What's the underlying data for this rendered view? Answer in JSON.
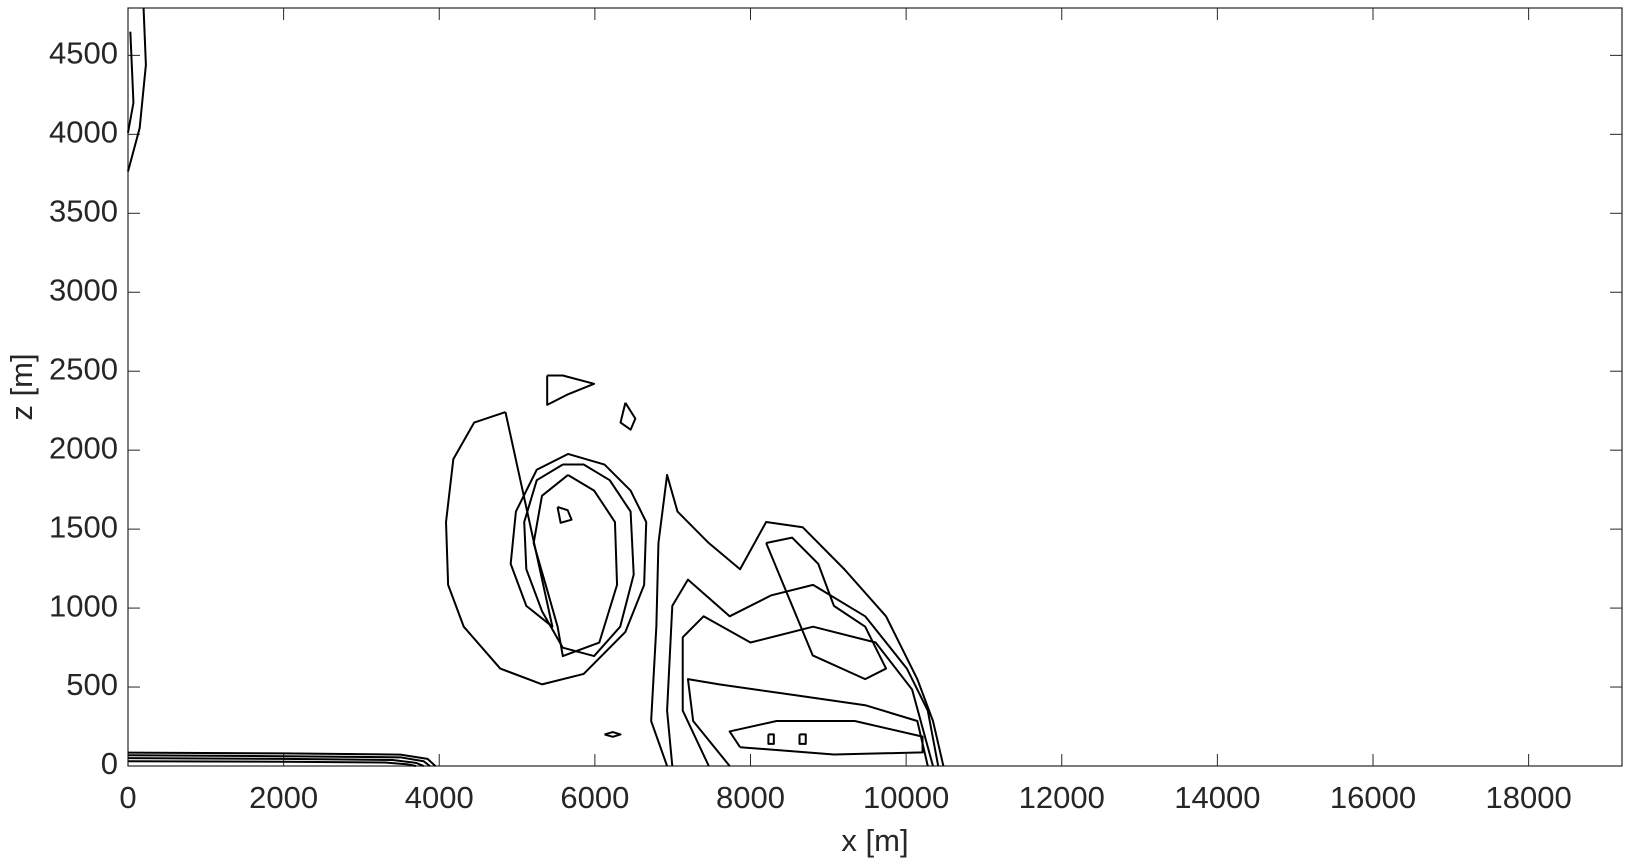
{
  "chart_data": {
    "type": "contour",
    "xlabel": "x [m]",
    "ylabel": "z [m]",
    "xlim": [
      0,
      19200
    ],
    "ylim": [
      0,
      4800
    ],
    "xticks": [
      0,
      2000,
      4000,
      6000,
      8000,
      10000,
      12000,
      14000,
      16000,
      18000
    ],
    "yticks": [
      0,
      500,
      1000,
      1500,
      2000,
      2500,
      3000,
      3500,
      4000,
      4500
    ],
    "grid": false,
    "color": "#000000",
    "series": [
      {
        "x": [
          0,
          150,
          230,
          200
        ],
        "values": [
          3765,
          4040,
          4440,
          4800
        ]
      },
      {
        "x": [
          0,
          70,
          30
        ],
        "values": [
          4010,
          4200,
          4650
        ]
      },
      {
        "x": [
          0,
          2000,
          3500,
          3850,
          3950
        ],
        "values": [
          85,
          80,
          72,
          45,
          0
        ]
      },
      {
        "x": [
          0,
          2000,
          3500,
          3800,
          3880
        ],
        "values": [
          68,
          62,
          55,
          30,
          0
        ]
      },
      {
        "x": [
          0,
          2000,
          3400,
          3700,
          3800
        ],
        "values": [
          50,
          45,
          38,
          20,
          0
        ]
      },
      {
        "x": [
          0,
          2000,
          3300,
          3600,
          3700
        ],
        "values": [
          30,
          27,
          22,
          10,
          0
        ]
      },
      {
        "x": [
          4851,
          4449,
          4181,
          4087,
          4114,
          4315,
          4784,
          5320,
          5856,
          6392,
          6633,
          6660,
          6459,
          6124,
          5655,
          5253,
          4985,
          4918,
          5119,
          5454,
          4851
        ],
        "values": [
          2241,
          2175,
          1943,
          1545,
          1147,
          882,
          617,
          517,
          583,
          849,
          1147,
          1545,
          1744,
          1909,
          1976,
          1876,
          1611,
          1280,
          1014,
          882,
          2241
        ]
      },
      {
        "x": [
          5588,
          5253,
          5092,
          5119,
          5320,
          5588,
          5990,
          6325,
          6499,
          6459,
          6191,
          5856,
          5588
        ],
        "values": [
          1909,
          1810,
          1545,
          1246,
          981,
          749,
          696,
          882,
          1213,
          1611,
          1810,
          1909,
          1909
        ]
      },
      {
        "x": [
          5655,
          5320,
          5213,
          5387,
          5521,
          5588,
          6057,
          6285,
          6258,
          5990,
          5655
        ],
        "values": [
          1843,
          1711,
          1412,
          1114,
          882,
          696,
          782,
          1147,
          1545,
          1744,
          1843
        ]
      },
      {
        "x": [
          5520,
          5650,
          5700,
          5560,
          5520
        ],
        "values": [
          1640,
          1620,
          1560,
          1540,
          1640
        ]
      },
      {
        "x": [
          5387,
          5588,
          5990,
          5655,
          5387,
          5387
        ],
        "values": [
          2473,
          2473,
          2420,
          2354,
          2287,
          2473
        ]
      },
      {
        "x": [
          6392,
          6520,
          6460,
          6330,
          6392
        ],
        "values": [
          2300,
          2200,
          2130,
          2175,
          2300
        ]
      },
      {
        "x": [
          6124,
          6230,
          6330,
          6230,
          6124
        ],
        "values": [
          200,
          215,
          200,
          185,
          200
        ]
      },
      {
        "x": [
          10479,
          10345,
          10144,
          9742,
          9206,
          8670,
          8201,
          7866,
          7464,
          7062,
          6928,
          6817,
          6790,
          6723,
          6928
        ],
        "values": [
          0,
          285,
          550,
          948,
          1246,
          1512,
          1545,
          1246,
          1412,
          1611,
          1843,
          1412,
          882,
          285,
          0
        ]
      },
      {
        "x": [
          6995,
          6928,
          6995,
          7196,
          7732,
          8268,
          8804,
          9474,
          10010,
          10278,
          10412
        ],
        "values": [
          0,
          351,
          1014,
          1180,
          948,
          1081,
          1147,
          948,
          617,
          351,
          0
        ]
      },
      {
        "x": [
          7464,
          7129,
          7129,
          7397,
          8000,
          8804,
          9608,
          10077,
          10345
        ],
        "values": [
          0,
          351,
          815,
          948,
          782,
          882,
          782,
          484,
          0
        ]
      },
      {
        "x": [
          7732,
          7263,
          7196,
          7598,
          8536,
          9474,
          10144,
          10278
        ],
        "values": [
          0,
          285,
          550,
          517,
          451,
          385,
          285,
          0
        ]
      },
      {
        "x": [
          7866,
          7732,
          8335,
          9340,
          10211,
          10211,
          9072,
          7866
        ],
        "values": [
          119,
          219,
          285,
          285,
          186,
          86,
          73,
          119
        ]
      },
      {
        "x": [
          8201,
          8536,
          8871,
          9072,
          9474,
          9742,
          9474,
          8800,
          8201
        ],
        "values": [
          1412,
          1446,
          1280,
          1014,
          882,
          617,
          550,
          700,
          1412
        ]
      },
      {
        "x": [
          8230,
          8300,
          8300,
          8230,
          8230
        ],
        "values": [
          200,
          200,
          140,
          140,
          200
        ]
      },
      {
        "x": [
          8630,
          8710,
          8710,
          8630,
          8630
        ],
        "values": [
          200,
          200,
          140,
          140,
          200
        ]
      }
    ]
  }
}
